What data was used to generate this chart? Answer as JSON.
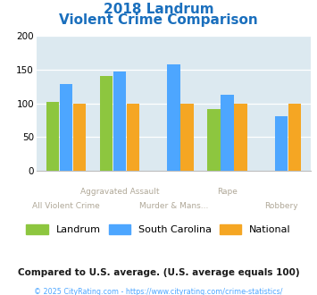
{
  "title_line1": "2018 Landrum",
  "title_line2": "Violent Crime Comparison",
  "landrum": [
    102,
    140,
    0,
    91,
    0
  ],
  "south_carolina": [
    128,
    147,
    157,
    113,
    81
  ],
  "national": [
    100,
    100,
    100,
    100,
    100
  ],
  "color_landrum": "#8dc63f",
  "color_sc": "#4da6ff",
  "color_national": "#f5a623",
  "ylim": [
    0,
    200
  ],
  "yticks": [
    0,
    50,
    100,
    150,
    200
  ],
  "background_color": "#dce9f0",
  "title_color": "#1a6fbd",
  "xlabel_color": "#b0a898",
  "xtick_row1": [
    "",
    "Aggravated Assault",
    "",
    "Rape",
    ""
  ],
  "xtick_row2": [
    "All Violent Crime",
    "",
    "Murder & Mans...",
    "",
    "Robbery"
  ],
  "legend_label_landrum": "Landrum",
  "legend_label_sc": "South Carolina",
  "legend_label_national": "National",
  "footer_text": "Compared to U.S. average. (U.S. average equals 100)",
  "copyright_text": "© 2025 CityRating.com - https://www.cityrating.com/crime-statistics/",
  "footer_color": "#1a1a1a",
  "copyright_color": "#4da6ff"
}
